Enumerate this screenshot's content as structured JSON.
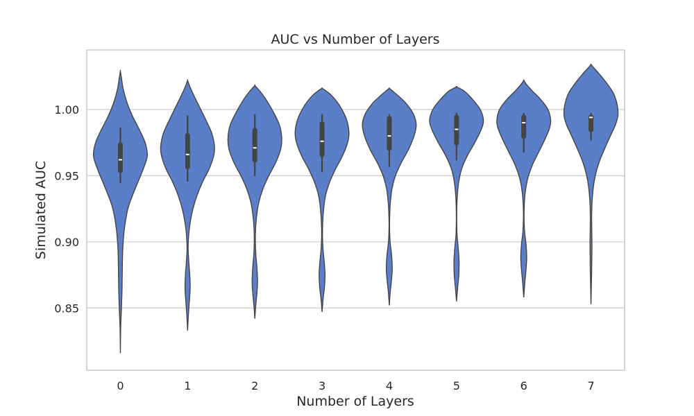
{
  "chart_data": {
    "type": "violin",
    "title": "AUC vs Number of Layers",
    "xlabel": "Number of Layers",
    "ylabel": "Simulated AUC",
    "categories": [
      "0",
      "1",
      "2",
      "3",
      "4",
      "5",
      "6",
      "7"
    ],
    "ylim": [
      0.803,
      1.045
    ],
    "yticks": [
      0.85,
      0.9,
      0.95,
      1.0
    ],
    "ytick_labels": [
      "0.85",
      "0.90",
      "0.95",
      "1.00"
    ],
    "grid": "horizontal",
    "colors": {
      "violin_fill": "#5a7ec8",
      "violin_edge": "#444444",
      "box": "#444444",
      "median": "#ffffff",
      "grid": "#cccccc",
      "frame": "#cccccc"
    },
    "violins": [
      {
        "category": "0",
        "median": 0.962,
        "q1": 0.952,
        "q3": 0.975,
        "whisker_low": 0.945,
        "whisker_high": 0.986,
        "profile": [
          [
            0.816,
            0.0
          ],
          [
            0.835,
            0.012
          ],
          [
            0.85,
            0.04
          ],
          [
            0.865,
            0.062
          ],
          [
            0.88,
            0.072
          ],
          [
            0.895,
            0.09
          ],
          [
            0.91,
            0.15
          ],
          [
            0.925,
            0.28
          ],
          [
            0.935,
            0.45
          ],
          [
            0.945,
            0.65
          ],
          [
            0.955,
            0.85
          ],
          [
            0.965,
            1.0
          ],
          [
            0.975,
            0.92
          ],
          [
            0.985,
            0.7
          ],
          [
            0.995,
            0.45
          ],
          [
            1.005,
            0.25
          ],
          [
            1.015,
            0.11
          ],
          [
            1.024,
            0.04
          ],
          [
            1.029,
            0.0
          ]
        ]
      },
      {
        "category": "1",
        "median": 0.966,
        "q1": 0.955,
        "q3": 0.982,
        "whisker_low": 0.946,
        "whisker_high": 0.995,
        "profile": [
          [
            0.833,
            0.0
          ],
          [
            0.845,
            0.03
          ],
          [
            0.855,
            0.065
          ],
          [
            0.865,
            0.095
          ],
          [
            0.875,
            0.08
          ],
          [
            0.885,
            0.045
          ],
          [
            0.895,
            0.02
          ],
          [
            0.905,
            0.04
          ],
          [
            0.915,
            0.1
          ],
          [
            0.925,
            0.2
          ],
          [
            0.935,
            0.35
          ],
          [
            0.945,
            0.55
          ],
          [
            0.955,
            0.8
          ],
          [
            0.965,
            0.97
          ],
          [
            0.972,
            1.0
          ],
          [
            0.982,
            0.9
          ],
          [
            0.992,
            0.68
          ],
          [
            1.002,
            0.44
          ],
          [
            1.012,
            0.2
          ],
          [
            1.018,
            0.07
          ],
          [
            1.022,
            0.0
          ]
        ]
      },
      {
        "category": "2",
        "median": 0.971,
        "q1": 0.96,
        "q3": 0.986,
        "whisker_low": 0.95,
        "whisker_high": 0.996,
        "profile": [
          [
            0.842,
            0.0
          ],
          [
            0.852,
            0.035
          ],
          [
            0.862,
            0.08
          ],
          [
            0.87,
            0.1
          ],
          [
            0.88,
            0.08
          ],
          [
            0.89,
            0.04
          ],
          [
            0.9,
            0.02
          ],
          [
            0.91,
            0.03
          ],
          [
            0.92,
            0.07
          ],
          [
            0.93,
            0.15
          ],
          [
            0.94,
            0.3
          ],
          [
            0.95,
            0.52
          ],
          [
            0.96,
            0.78
          ],
          [
            0.97,
            0.96
          ],
          [
            0.978,
            1.0
          ],
          [
            0.988,
            0.92
          ],
          [
            0.998,
            0.69
          ],
          [
            1.008,
            0.4
          ],
          [
            1.014,
            0.18
          ],
          [
            1.018,
            0.0
          ]
        ]
      },
      {
        "category": "3",
        "median": 0.976,
        "q1": 0.964,
        "q3": 0.991,
        "whisker_low": 0.953,
        "whisker_high": 0.996,
        "profile": [
          [
            0.847,
            0.0
          ],
          [
            0.857,
            0.04
          ],
          [
            0.865,
            0.085
          ],
          [
            0.875,
            0.11
          ],
          [
            0.885,
            0.08
          ],
          [
            0.895,
            0.035
          ],
          [
            0.905,
            0.015
          ],
          [
            0.915,
            0.025
          ],
          [
            0.925,
            0.06
          ],
          [
            0.935,
            0.13
          ],
          [
            0.945,
            0.28
          ],
          [
            0.955,
            0.5
          ],
          [
            0.965,
            0.76
          ],
          [
            0.975,
            0.95
          ],
          [
            0.983,
            1.0
          ],
          [
            0.993,
            0.9
          ],
          [
            1.003,
            0.65
          ],
          [
            1.01,
            0.38
          ],
          [
            1.014,
            0.15
          ],
          [
            1.016,
            0.0
          ]
        ]
      },
      {
        "category": "4",
        "median": 0.98,
        "q1": 0.969,
        "q3": 0.995,
        "whisker_low": 0.957,
        "whisker_high": 0.996,
        "profile": [
          [
            0.852,
            0.0
          ],
          [
            0.862,
            0.035
          ],
          [
            0.872,
            0.085
          ],
          [
            0.88,
            0.11
          ],
          [
            0.89,
            0.085
          ],
          [
            0.9,
            0.03
          ],
          [
            0.91,
            0.01
          ],
          [
            0.92,
            0.015
          ],
          [
            0.93,
            0.04
          ],
          [
            0.94,
            0.1
          ],
          [
            0.95,
            0.23
          ],
          [
            0.96,
            0.45
          ],
          [
            0.97,
            0.72
          ],
          [
            0.98,
            0.92
          ],
          [
            0.988,
            1.0
          ],
          [
            0.996,
            0.91
          ],
          [
            1.004,
            0.65
          ],
          [
            1.01,
            0.35
          ],
          [
            1.014,
            0.12
          ],
          [
            1.016,
            0.0
          ]
        ]
      },
      {
        "category": "5",
        "median": 0.985,
        "q1": 0.973,
        "q3": 0.996,
        "whisker_low": 0.962,
        "whisker_high": 0.997,
        "profile": [
          [
            0.855,
            0.0
          ],
          [
            0.865,
            0.04
          ],
          [
            0.875,
            0.085
          ],
          [
            0.885,
            0.095
          ],
          [
            0.895,
            0.065
          ],
          [
            0.905,
            0.02
          ],
          [
            0.915,
            0.008
          ],
          [
            0.925,
            0.01
          ],
          [
            0.935,
            0.03
          ],
          [
            0.945,
            0.08
          ],
          [
            0.955,
            0.19
          ],
          [
            0.965,
            0.4
          ],
          [
            0.975,
            0.68
          ],
          [
            0.985,
            0.92
          ],
          [
            0.992,
            1.0
          ],
          [
            1.0,
            0.88
          ],
          [
            1.008,
            0.58
          ],
          [
            1.014,
            0.28
          ],
          [
            1.017,
            0.0
          ]
        ]
      },
      {
        "category": "6",
        "median": 0.99,
        "q1": 0.978,
        "q3": 0.996,
        "whisker_low": 0.968,
        "whisker_high": 0.997,
        "profile": [
          [
            0.858,
            0.0
          ],
          [
            0.868,
            0.035
          ],
          [
            0.878,
            0.08
          ],
          [
            0.888,
            0.11
          ],
          [
            0.898,
            0.085
          ],
          [
            0.908,
            0.03
          ],
          [
            0.918,
            0.012
          ],
          [
            0.928,
            0.02
          ],
          [
            0.938,
            0.06
          ],
          [
            0.948,
            0.15
          ],
          [
            0.958,
            0.32
          ],
          [
            0.968,
            0.56
          ],
          [
            0.978,
            0.8
          ],
          [
            0.986,
            0.96
          ],
          [
            0.992,
            1.0
          ],
          [
            1.0,
            0.9
          ],
          [
            1.008,
            0.61
          ],
          [
            1.014,
            0.32
          ],
          [
            1.019,
            0.1
          ],
          [
            1.022,
            0.0
          ]
        ]
      },
      {
        "category": "7",
        "median": 0.994,
        "q1": 0.983,
        "q3": 0.996,
        "whisker_low": 0.977,
        "whisker_high": 0.997,
        "profile": [
          [
            0.853,
            0.0
          ],
          [
            0.865,
            0.012
          ],
          [
            0.878,
            0.025
          ],
          [
            0.89,
            0.032
          ],
          [
            0.9,
            0.035
          ],
          [
            0.91,
            0.028
          ],
          [
            0.92,
            0.025
          ],
          [
            0.93,
            0.04
          ],
          [
            0.94,
            0.08
          ],
          [
            0.95,
            0.16
          ],
          [
            0.96,
            0.3
          ],
          [
            0.97,
            0.5
          ],
          [
            0.98,
            0.72
          ],
          [
            0.988,
            0.9
          ],
          [
            0.995,
            1.0
          ],
          [
            1.003,
            0.98
          ],
          [
            1.012,
            0.84
          ],
          [
            1.02,
            0.58
          ],
          [
            1.027,
            0.3
          ],
          [
            1.032,
            0.08
          ],
          [
            1.034,
            0.0
          ]
        ]
      }
    ]
  }
}
